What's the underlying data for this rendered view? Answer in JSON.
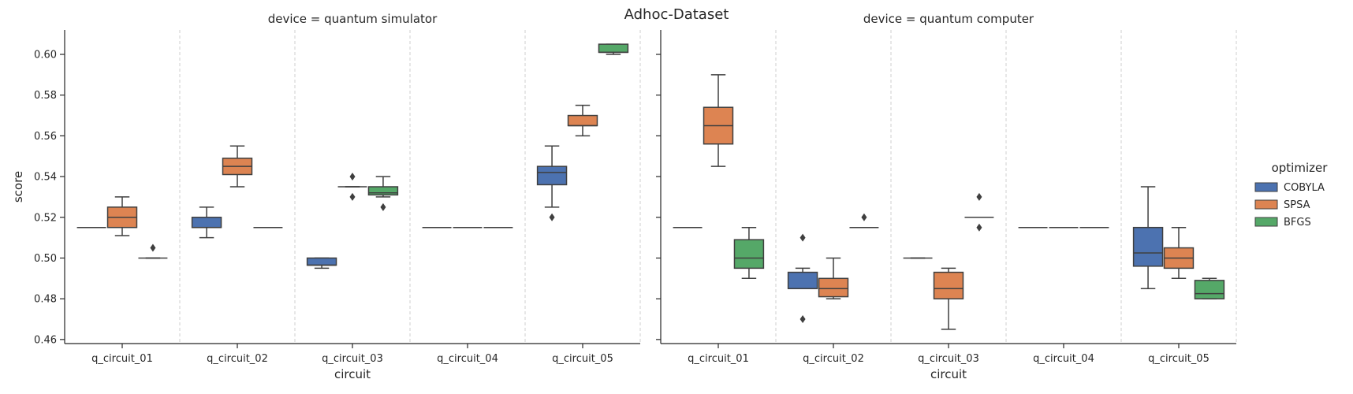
{
  "chart_data": {
    "type": "box",
    "title": "Adhoc-Dataset",
    "xlabel": "circuit",
    "ylabel": "score",
    "ylim": [
      0.458,
      0.612
    ],
    "yticks": [
      0.46,
      0.48,
      0.5,
      0.52,
      0.54,
      0.56,
      0.58,
      0.6
    ],
    "grid": "vertical dashed separators between categories",
    "categories": [
      "q_circuit_01",
      "q_circuit_02",
      "q_circuit_03",
      "q_circuit_04",
      "q_circuit_05"
    ],
    "legend": {
      "title": "optimizer",
      "placement": "right",
      "entries": [
        {
          "name": "COBYLA",
          "color": "#4c72b0"
        },
        {
          "name": "SPSA",
          "color": "#dd8452"
        },
        {
          "name": "BFGS",
          "color": "#55a868"
        }
      ]
    },
    "panels": [
      {
        "title": "device = quantum simulator",
        "boxes": {
          "q_circuit_01": {
            "COBYLA": {
              "whislo": 0.515,
              "q1": 0.515,
              "med": 0.515,
              "q3": 0.515,
              "whishi": 0.515,
              "fliers": []
            },
            "SPSA": {
              "whislo": 0.511,
              "q1": 0.515,
              "med": 0.52,
              "q3": 0.525,
              "whishi": 0.53,
              "fliers": []
            },
            "BFGS": {
              "whislo": 0.5,
              "q1": 0.5,
              "med": 0.5,
              "q3": 0.5,
              "whishi": 0.5,
              "fliers": [
                0.505
              ]
            }
          },
          "q_circuit_02": {
            "COBYLA": {
              "whislo": 0.51,
              "q1": 0.515,
              "med": 0.515,
              "q3": 0.52,
              "whishi": 0.525,
              "fliers": []
            },
            "SPSA": {
              "whislo": 0.535,
              "q1": 0.541,
              "med": 0.545,
              "q3": 0.549,
              "whishi": 0.555,
              "fliers": []
            },
            "BFGS": {
              "whislo": 0.515,
              "q1": 0.515,
              "med": 0.515,
              "q3": 0.515,
              "whishi": 0.515,
              "fliers": []
            }
          },
          "q_circuit_03": {
            "COBYLA": {
              "whislo": 0.495,
              "q1": 0.4965,
              "med": 0.4965,
              "q3": 0.5,
              "whishi": 0.5,
              "fliers": []
            },
            "SPSA": {
              "whislo": 0.535,
              "q1": 0.535,
              "med": 0.535,
              "q3": 0.535,
              "whishi": 0.535,
              "fliers": [
                0.54,
                0.53
              ]
            },
            "BFGS": {
              "whislo": 0.53,
              "q1": 0.531,
              "med": 0.532,
              "q3": 0.535,
              "whishi": 0.54,
              "fliers": [
                0.525
              ]
            }
          },
          "q_circuit_04": {
            "COBYLA": {
              "whislo": 0.515,
              "q1": 0.515,
              "med": 0.515,
              "q3": 0.515,
              "whishi": 0.515,
              "fliers": []
            },
            "SPSA": {
              "whislo": 0.515,
              "q1": 0.515,
              "med": 0.515,
              "q3": 0.515,
              "whishi": 0.515,
              "fliers": []
            },
            "BFGS": {
              "whislo": 0.515,
              "q1": 0.515,
              "med": 0.515,
              "q3": 0.515,
              "whishi": 0.515,
              "fliers": []
            }
          },
          "q_circuit_05": {
            "COBYLA": {
              "whislo": 0.525,
              "q1": 0.536,
              "med": 0.542,
              "q3": 0.545,
              "whishi": 0.555,
              "fliers": [
                0.52
              ]
            },
            "SPSA": {
              "whislo": 0.56,
              "q1": 0.565,
              "med": 0.565,
              "q3": 0.57,
              "whishi": 0.575,
              "fliers": []
            },
            "BFGS": {
              "whislo": 0.6,
              "q1": 0.601,
              "med": 0.601,
              "q3": 0.605,
              "whishi": 0.605,
              "fliers": []
            }
          }
        }
      },
      {
        "title": "device = quantum computer",
        "boxes": {
          "q_circuit_01": {
            "COBYLA": {
              "whislo": 0.515,
              "q1": 0.515,
              "med": 0.515,
              "q3": 0.515,
              "whishi": 0.515,
              "fliers": []
            },
            "SPSA": {
              "whislo": 0.545,
              "q1": 0.556,
              "med": 0.565,
              "q3": 0.574,
              "whishi": 0.59,
              "fliers": []
            },
            "BFGS": {
              "whislo": 0.49,
              "q1": 0.495,
              "med": 0.5,
              "q3": 0.509,
              "whishi": 0.515,
              "fliers": []
            }
          },
          "q_circuit_02": {
            "COBYLA": {
              "whislo": 0.485,
              "q1": 0.485,
              "med": 0.485,
              "q3": 0.493,
              "whishi": 0.495,
              "fliers": [
                0.51,
                0.47
              ]
            },
            "SPSA": {
              "whislo": 0.48,
              "q1": 0.481,
              "med": 0.485,
              "q3": 0.49,
              "whishi": 0.5,
              "fliers": []
            },
            "BFGS": {
              "whislo": 0.515,
              "q1": 0.515,
              "med": 0.515,
              "q3": 0.515,
              "whishi": 0.515,
              "fliers": [
                0.52
              ]
            }
          },
          "q_circuit_03": {
            "COBYLA": {
              "whislo": 0.5,
              "q1": 0.5,
              "med": 0.5,
              "q3": 0.5,
              "whishi": 0.5,
              "fliers": []
            },
            "SPSA": {
              "whislo": 0.465,
              "q1": 0.48,
              "med": 0.485,
              "q3": 0.493,
              "whishi": 0.495,
              "fliers": []
            },
            "BFGS": {
              "whislo": 0.52,
              "q1": 0.52,
              "med": 0.52,
              "q3": 0.52,
              "whishi": 0.52,
              "fliers": [
                0.53,
                0.515
              ]
            }
          },
          "q_circuit_04": {
            "COBYLA": {
              "whislo": 0.515,
              "q1": 0.515,
              "med": 0.515,
              "q3": 0.515,
              "whishi": 0.515,
              "fliers": []
            },
            "SPSA": {
              "whislo": 0.515,
              "q1": 0.515,
              "med": 0.515,
              "q3": 0.515,
              "whishi": 0.515,
              "fliers": []
            },
            "BFGS": {
              "whislo": 0.515,
              "q1": 0.515,
              "med": 0.515,
              "q3": 0.515,
              "whishi": 0.515,
              "fliers": []
            }
          },
          "q_circuit_05": {
            "COBYLA": {
              "whislo": 0.485,
              "q1": 0.496,
              "med": 0.5025,
              "q3": 0.515,
              "whishi": 0.535,
              "fliers": []
            },
            "SPSA": {
              "whislo": 0.49,
              "q1": 0.495,
              "med": 0.5,
              "q3": 0.505,
              "whishi": 0.515,
              "fliers": []
            },
            "BFGS": {
              "whislo": 0.48,
              "q1": 0.48,
              "med": 0.4825,
              "q3": 0.489,
              "whishi": 0.49,
              "fliers": []
            }
          }
        }
      }
    ]
  }
}
